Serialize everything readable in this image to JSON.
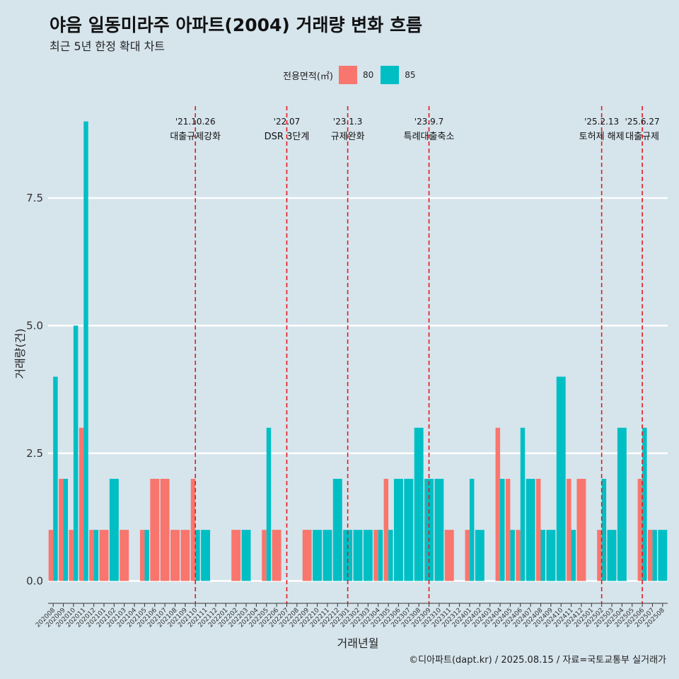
{
  "title": "야음 일동미라주 아파트(2004) 거래량 변화 흐름",
  "subtitle": "최근 5년 한정 확대 차트",
  "credit": "©디아파트(dapt.kr) / 2025.08.15 / 자료=국토교통부 실거래가",
  "colors": {
    "s80": "#f8766d",
    "s85": "#00bfc4",
    "event": "#e41a1c"
  },
  "chart_data": {
    "type": "bar",
    "title": "야음 일동미라주 아파트(2004) 거래량 변화 흐름",
    "xlabel": "거래년월",
    "ylabel": "거래량(건)",
    "ylim": [
      -0.3,
      9.3
    ],
    "yticks": [
      0.0,
      2.5,
      5.0,
      7.5
    ],
    "ytick_labels": [
      "0.0",
      "2.5",
      "5.0",
      "7.5"
    ],
    "grid": true,
    "legend": {
      "title": "전용면적(㎡)",
      "entries": [
        "80",
        "85"
      ],
      "position": "top"
    },
    "categories": [
      "202008",
      "202009",
      "202010",
      "202011",
      "202012",
      "202101",
      "202102",
      "202103",
      "202104",
      "202105",
      "202106",
      "202107",
      "202108",
      "202109",
      "202110",
      "202111",
      "202112",
      "202201",
      "202202",
      "202203",
      "202204",
      "202205",
      "202206",
      "202207",
      "202208",
      "202209",
      "202210",
      "202211",
      "202212",
      "202301",
      "202302",
      "202303",
      "202304",
      "202305",
      "202306",
      "202307",
      "202308",
      "202309",
      "202310",
      "202311",
      "202312",
      "202401",
      "202402",
      "202403",
      "202404",
      "202405",
      "202406",
      "202407",
      "202408",
      "202409",
      "202410",
      "202411",
      "202412",
      "202501",
      "202502",
      "202503",
      "202504",
      "202505",
      "202506",
      "202507",
      "202508"
    ],
    "series": [
      {
        "name": "80",
        "values": [
          1,
          2,
          1,
          3,
          1,
          1,
          0,
          1,
          0,
          1,
          2,
          2,
          1,
          1,
          2,
          0,
          0,
          0,
          1,
          0,
          0,
          1,
          1,
          0,
          0,
          1,
          0,
          0,
          0,
          0,
          0,
          0,
          1,
          2,
          0,
          0,
          0,
          0,
          0,
          1,
          0,
          1,
          0,
          0,
          3,
          2,
          1,
          0,
          2,
          0,
          0,
          2,
          2,
          0,
          1,
          0,
          0,
          0,
          2,
          1,
          0
        ]
      },
      {
        "name": "85",
        "values": [
          4,
          2,
          5,
          9,
          1,
          0,
          2,
          0,
          0,
          1,
          0,
          0,
          0,
          0,
          1,
          1,
          0,
          0,
          0,
          1,
          0,
          3,
          0,
          0,
          0,
          0,
          1,
          1,
          2,
          1,
          1,
          1,
          1,
          1,
          2,
          2,
          3,
          2,
          2,
          0,
          0,
          2,
          1,
          0,
          2,
          1,
          3,
          2,
          1,
          1,
          4,
          1,
          0,
          0,
          2,
          1,
          3,
          0,
          3,
          1,
          1
        ]
      }
    ],
    "events": [
      {
        "date": "'21.10.26",
        "label": "대출규제강화",
        "month": "202110"
      },
      {
        "date": "'22.07",
        "label": "DSR 3단계",
        "month": "202207"
      },
      {
        "date": "'23.1.3",
        "label": "규제완화",
        "month": "202301"
      },
      {
        "date": "'23.9.7",
        "label": "특례대출축소",
        "month": "202309"
      },
      {
        "date": "'25.2.13",
        "label": "토허제 해제",
        "month": "202502"
      },
      {
        "date": "'25.6.27",
        "label": "대출규제",
        "month": "202506"
      }
    ]
  }
}
